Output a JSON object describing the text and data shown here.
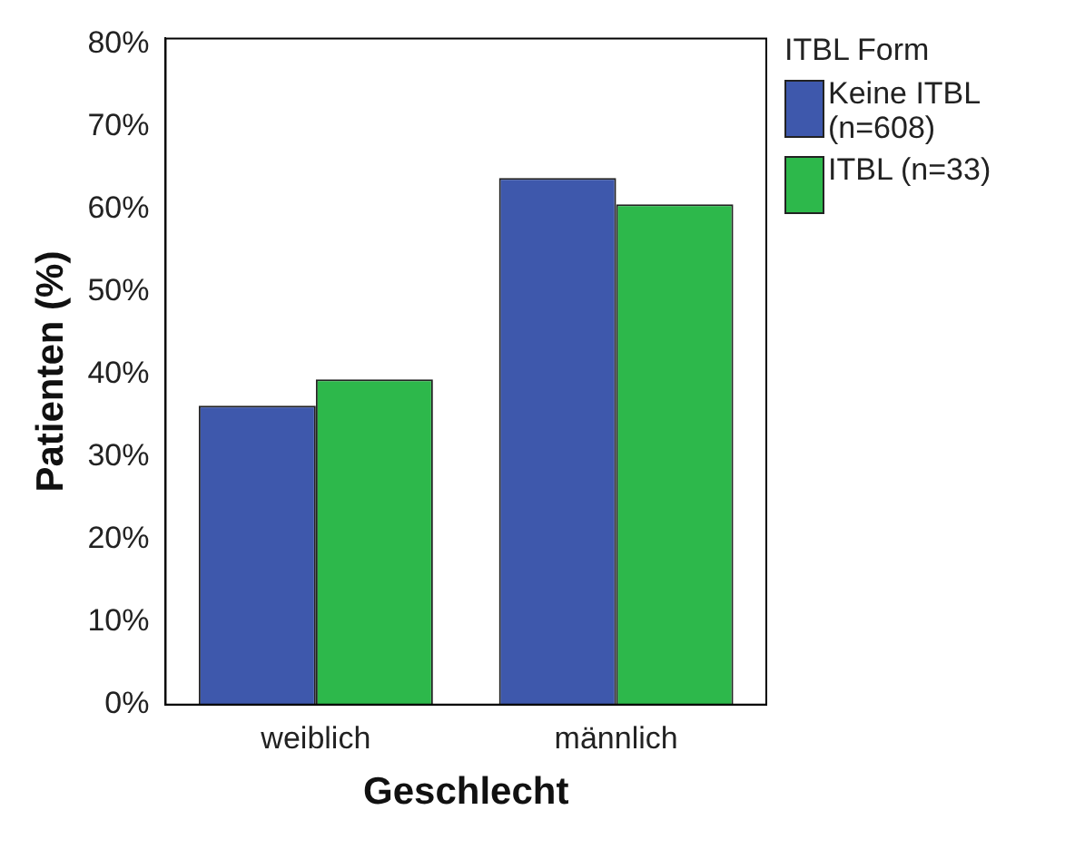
{
  "chart_data": {
    "type": "bar",
    "xlabel": "Geschlecht",
    "ylabel": "Patienten (%)",
    "legend_title": "ITBL Form",
    "categories": [
      "weiblich",
      "männlich"
    ],
    "series": [
      {
        "name": "Keine ITBL (n=608)",
        "color": "#3e58ac",
        "values": [
          36.2,
          63.8
        ]
      },
      {
        "name": "ITBL (n=33)",
        "color": "#2db84b",
        "values": [
          39.4,
          60.6
        ]
      }
    ],
    "ylim": [
      0,
      80.7
    ],
    "yticks": [
      {
        "value": 0,
        "label": "0%"
      },
      {
        "value": 10,
        "label": "10%"
      },
      {
        "value": 20,
        "label": "20%"
      },
      {
        "value": 30,
        "label": "30%"
      },
      {
        "value": 40,
        "label": "40%"
      },
      {
        "value": 50,
        "label": "50%"
      },
      {
        "value": 60,
        "label": "60%"
      },
      {
        "value": 70,
        "label": "70%"
      },
      {
        "value": 80,
        "label": "80%"
      }
    ],
    "grid": false,
    "legend": "right"
  }
}
